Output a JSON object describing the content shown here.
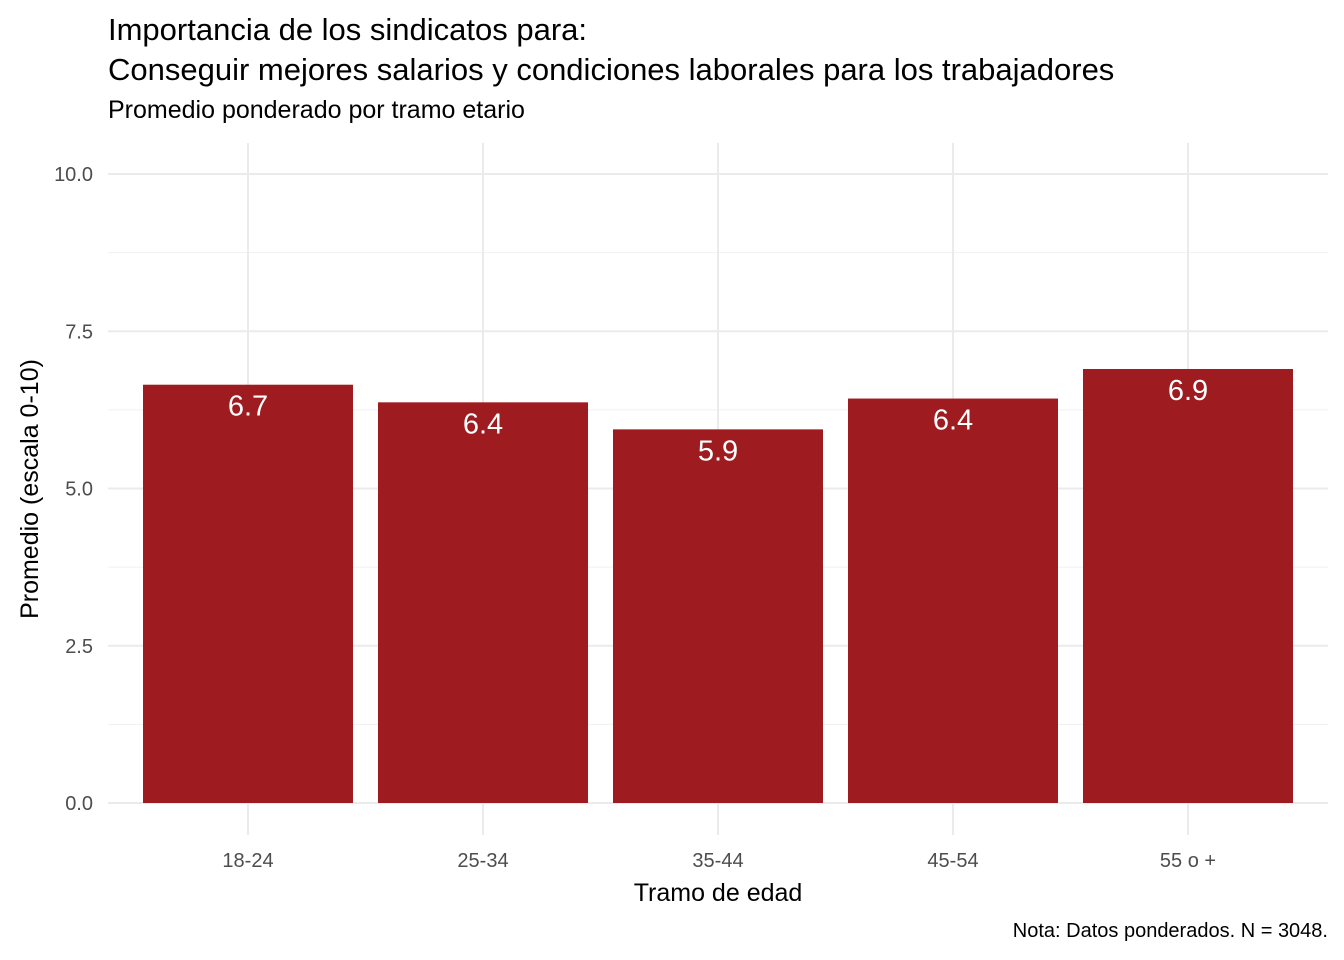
{
  "chart_data": {
    "type": "bar",
    "title_line1": "Importancia de los sindicatos para:",
    "title_line2": "Conseguir mejores salarios y condiciones laborales para los trabajadores",
    "subtitle": "Promedio ponderado por tramo etario",
    "xlabel": "Tramo de edad",
    "ylabel": "Promedio (escala 0-10)",
    "caption": "Nota: Datos ponderados. N = 3048.",
    "categories": [
      "18-24",
      "25-34",
      "35-44",
      "45-54",
      "55 o +"
    ],
    "values": [
      6.65,
      6.37,
      5.94,
      6.43,
      6.9
    ],
    "value_labels": [
      "6.7",
      "6.4",
      "5.9",
      "6.4",
      "6.9"
    ],
    "ylim": [
      0,
      10.5
    ],
    "yticks": [
      "0.0",
      "2.5",
      "5.0",
      "7.5",
      "10.0"
    ],
    "ytick_values": [
      0,
      2.5,
      5,
      7.5,
      10
    ],
    "bar_color": "#9e1c20",
    "grid": true,
    "legend": "none"
  }
}
